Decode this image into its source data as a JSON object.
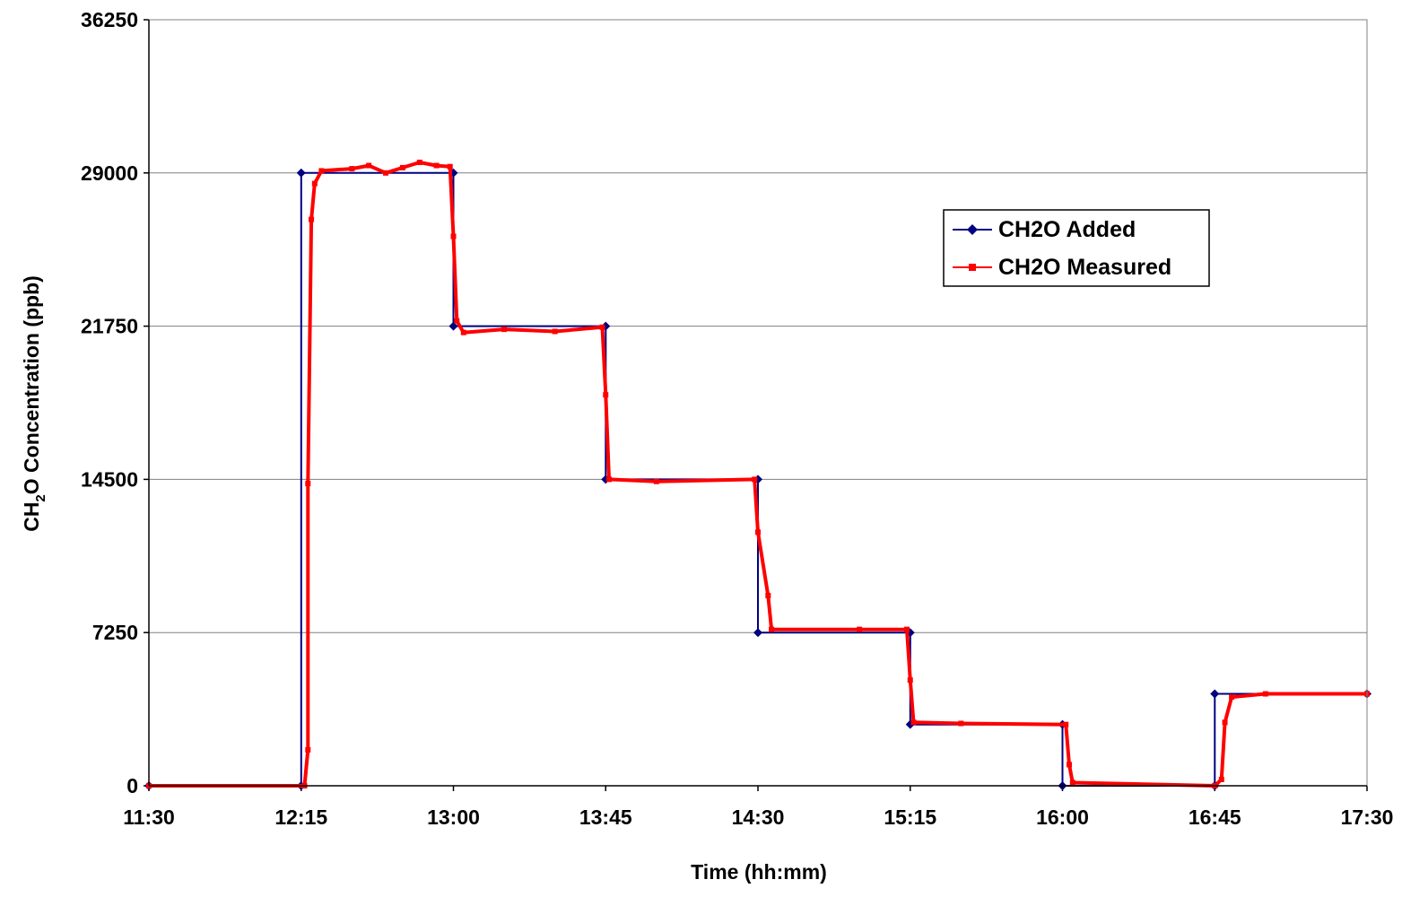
{
  "chart_data": {
    "type": "line",
    "title": "",
    "xlabel": "Time (hh:mm)",
    "ylabel_main": "CH",
    "ylabel_sub": "2",
    "ylabel_rest": "O Concentration (ppb)",
    "x_ticks": [
      "11:30",
      "12:15",
      "13:00",
      "13:45",
      "14:30",
      "15:15",
      "16:00",
      "16:45",
      "17:30"
    ],
    "y_ticks": [
      0,
      7250,
      14500,
      21750,
      29000,
      36250
    ],
    "xlim": [
      "11:30",
      "17:30"
    ],
    "ylim": [
      0,
      36250
    ],
    "grid": "horizontal",
    "legend_position": "right",
    "series": [
      {
        "name": "CH2O Added",
        "color": "#000080",
        "marker": "diamond",
        "points": [
          [
            "11:30",
            0
          ],
          [
            "12:15",
            0
          ],
          [
            "12:15",
            29000
          ],
          [
            "13:00",
            29000
          ],
          [
            "13:00",
            21750
          ],
          [
            "13:45",
            21750
          ],
          [
            "13:45",
            14500
          ],
          [
            "14:30",
            14500
          ],
          [
            "14:30",
            7250
          ],
          [
            "15:15",
            7250
          ],
          [
            "15:15",
            2900
          ],
          [
            "16:00",
            2900
          ],
          [
            "16:00",
            0
          ],
          [
            "16:45",
            0
          ],
          [
            "16:45",
            4350
          ],
          [
            "17:30",
            4350
          ]
        ]
      },
      {
        "name": "CH2O Measured",
        "color": "#ff0000",
        "marker": "square",
        "points": [
          [
            "11:30",
            0
          ],
          [
            "12:16",
            0
          ],
          [
            "12:17",
            1700
          ],
          [
            "12:17",
            14300
          ],
          [
            "12:18",
            26800
          ],
          [
            "12:19",
            28500
          ],
          [
            "12:21",
            29100
          ],
          [
            "12:30",
            29200
          ],
          [
            "12:35",
            29350
          ],
          [
            "12:40",
            29000
          ],
          [
            "12:45",
            29250
          ],
          [
            "12:50",
            29500
          ],
          [
            "12:55",
            29350
          ],
          [
            "12:59",
            29300
          ],
          [
            "13:00",
            26000
          ],
          [
            "13:01",
            22000
          ],
          [
            "13:03",
            21450
          ],
          [
            "13:15",
            21600
          ],
          [
            "13:30",
            21500
          ],
          [
            "13:44",
            21700
          ],
          [
            "13:45",
            18500
          ],
          [
            "13:46",
            14500
          ],
          [
            "14:00",
            14400
          ],
          [
            "14:29",
            14500
          ],
          [
            "14:30",
            12000
          ],
          [
            "14:33",
            9000
          ],
          [
            "14:34",
            7400
          ],
          [
            "15:00",
            7400
          ],
          [
            "15:14",
            7400
          ],
          [
            "15:15",
            5000
          ],
          [
            "15:16",
            3000
          ],
          [
            "15:30",
            2950
          ],
          [
            "16:01",
            2900
          ],
          [
            "16:02",
            1000
          ],
          [
            "16:03",
            150
          ],
          [
            "16:45",
            0
          ],
          [
            "16:47",
            300
          ],
          [
            "16:48",
            3000
          ],
          [
            "16:50",
            4200
          ],
          [
            "17:00",
            4350
          ],
          [
            "17:30",
            4350
          ]
        ]
      }
    ]
  }
}
